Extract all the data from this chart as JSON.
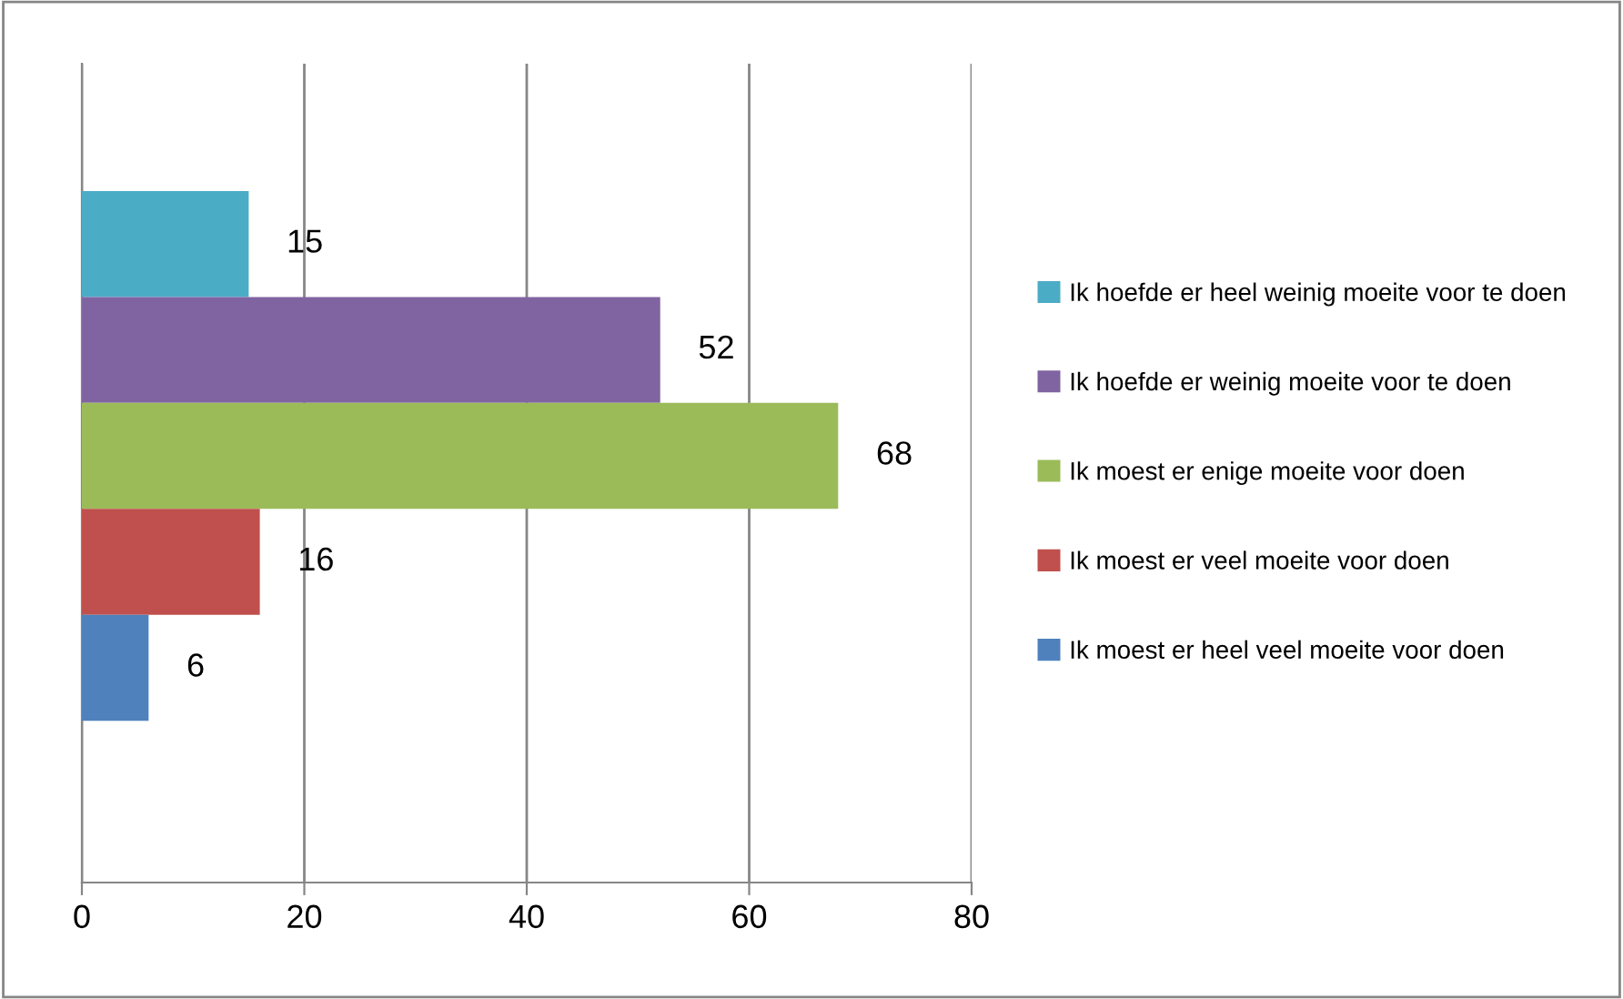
{
  "chart_data": {
    "type": "bar",
    "orientation": "horizontal",
    "categories": [
      null
    ],
    "series": [
      {
        "name": "Ik hoefde er heel weinig moeite voor te doen",
        "color": "#4bacc6",
        "values": [
          15
        ]
      },
      {
        "name": "Ik hoefde er weinig moeite voor te doen",
        "color": "#8064a2",
        "values": [
          52
        ]
      },
      {
        "name": "Ik moest er enige moeite voor doen",
        "color": "#9bbb59",
        "values": [
          68
        ]
      },
      {
        "name": "Ik moest er veel moeite voor doen",
        "color": "#c0504d",
        "values": [
          16
        ]
      },
      {
        "name": "Ik moest er heel veel moeite voor doen",
        "color": "#4f81bd",
        "values": [
          6
        ]
      }
    ],
    "xlim": [
      0,
      80
    ],
    "xticks": [
      0,
      20,
      40,
      60,
      80
    ],
    "grid": "x",
    "legend": "right",
    "data_labels": true
  }
}
